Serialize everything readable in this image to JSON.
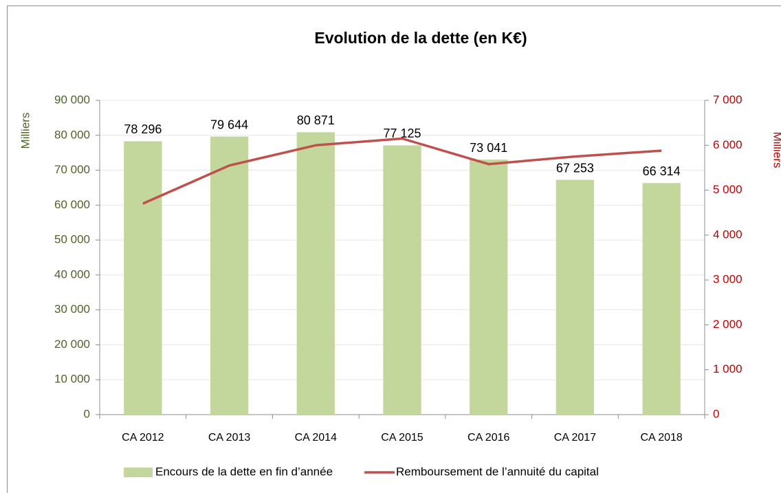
{
  "chart_data": {
    "type": "bar",
    "title": "Evolution de la dette (en K€)",
    "y_label": "Milliers",
    "y2_label": "Milliers",
    "categories": [
      "CA 2012",
      "CA 2013",
      "CA 2014",
      "CA 2015",
      "CA 2016",
      "CA 2017",
      "CA 2018"
    ],
    "series": [
      {
        "name": "Encours de la dette en fin d’année",
        "type": "bar",
        "color": "#c3d69b",
        "values": [
          78296,
          79644,
          80871,
          77125,
          73041,
          67253,
          66314
        ],
        "value_labels": [
          "78 296",
          "79 644",
          "80 871",
          "77 125",
          "73 041",
          "67 253",
          "66 314"
        ]
      },
      {
        "name": "Remboursement de l’annuité du capital",
        "type": "line",
        "axis": "y2",
        "color": "#c0504d",
        "values": [
          4700,
          5550,
          6000,
          6150,
          5580,
          5750,
          5880
        ]
      }
    ],
    "ylim": [
      0,
      90000
    ],
    "yticks": [
      0,
      {
        "value": 10000,
        "label": "10 000"
      },
      {
        "value": 20000,
        "label": "20 000"
      },
      {
        "value": 30000,
        "label": "30 000"
      },
      {
        "value": 40000,
        "label": "40 000"
      },
      {
        "value": 50000,
        "label": "50 000"
      },
      {
        "value": 60000,
        "label": "60 000"
      },
      {
        "value": 70000,
        "label": "70 000"
      },
      {
        "value": 80000,
        "label": "80 000"
      },
      {
        "value": 90000,
        "label": "90 000"
      }
    ],
    "y2lim": [
      0,
      7000
    ],
    "y2ticks": [
      0,
      {
        "value": 1000,
        "label": "1 000"
      },
      {
        "value": 2000,
        "label": "2 000"
      },
      {
        "value": 3000,
        "label": "3 000"
      },
      {
        "value": 4000,
        "label": "4 000"
      },
      {
        "value": 5000,
        "label": "5 000"
      },
      {
        "value": 6000,
        "label": "6 000"
      },
      {
        "value": 7000,
        "label": "7 000"
      }
    ],
    "grid": true,
    "legend": "bottom"
  }
}
